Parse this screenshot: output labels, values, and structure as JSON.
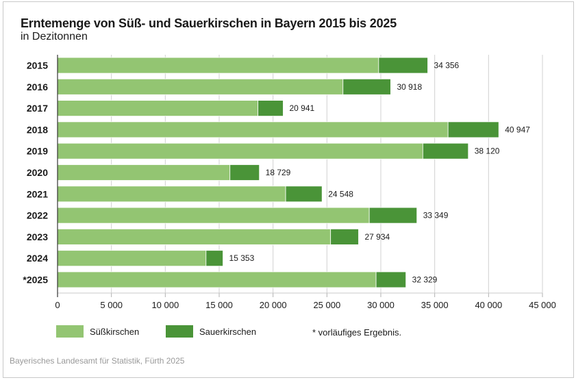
{
  "chart_data": {
    "type": "bar",
    "orientation": "horizontal",
    "stacked": true,
    "title": "Erntemenge von Süß- und Sauerkirschen in Bayern 2015 bis 2025",
    "subtitle": "in Dezitonnen",
    "xlabel": "",
    "ylabel": "",
    "xlim": [
      0,
      45000
    ],
    "xticks": [
      0,
      5000,
      10000,
      15000,
      20000,
      25000,
      30000,
      35000,
      40000,
      45000
    ],
    "xtick_labels": [
      "0",
      "5 000",
      "10 000",
      "15 000",
      "20 000",
      "25 000",
      "30 000",
      "35 000",
      "40 000",
      "45 000"
    ],
    "grid": "vertical",
    "categories": [
      "2015",
      "2016",
      "2017",
      "2018",
      "2019",
      "2020",
      "2021",
      "2022",
      "2023",
      "2024",
      "*2025"
    ],
    "series": [
      {
        "name": "Süßkirschen",
        "color": "#93C572",
        "values": [
          29800,
          26490,
          18600,
          36240,
          33900,
          16000,
          21170,
          28930,
          25340,
          13780,
          29560
        ]
      },
      {
        "name": "Sauerkirschen",
        "color": "#4A9438",
        "values": [
          4556,
          4428,
          2341,
          4707,
          4220,
          2729,
          3378,
          4419,
          2594,
          1573,
          2769
        ]
      }
    ],
    "totals": [
      34356,
      30918,
      20941,
      40947,
      38120,
      18729,
      24548,
      33349,
      27934,
      15353,
      32329
    ],
    "total_labels": [
      "34 356",
      "30 918",
      "20 941",
      "40 947",
      "38 120",
      "18 729",
      "24 548",
      "33 349",
      "27 934",
      "15 353",
      "32 329"
    ],
    "legend": [
      "Süßkirschen",
      "Sauerkirschen"
    ],
    "legend_position": "bottom-left",
    "annotations": [
      "* vorläufiges Ergebnis."
    ]
  },
  "header": {
    "title": "Erntemenge von Süß- und Sauerkirschen in Bayern 2015 bis 2025",
    "subtitle": "in Dezitonnen"
  },
  "legend": {
    "items": [
      {
        "label": "Süßkirschen",
        "color": "#93C572"
      },
      {
        "label": "Sauerkirschen",
        "color": "#4A9438"
      }
    ],
    "note": "* vorläufiges Ergebnis."
  },
  "footer": {
    "source": "Bayerisches Landesamt für Statistik, Fürth 2025"
  }
}
